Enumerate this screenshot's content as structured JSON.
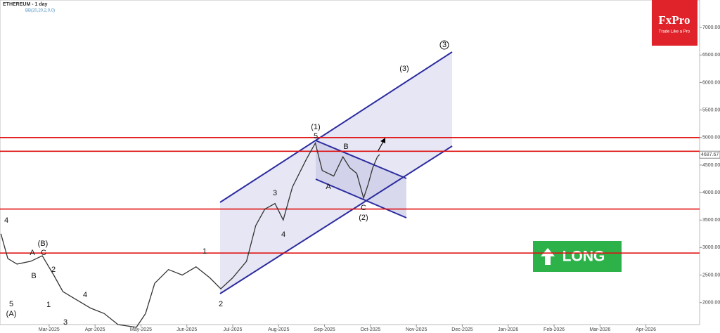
{
  "chart_data": {
    "type": "line",
    "title": "ETHEREUM - 1 day",
    "subtitle": "BB(20,20,2,0,0)",
    "logo": "FxPro",
    "logo_tagline": "Trade Like a Pro",
    "signal": "LONG",
    "last_price": {
      "value": 4687.67,
      "label": "4687.67"
    },
    "levels": [
      5000,
      4750,
      3700,
      2900
    ],
    "annotations": [
      "4",
      "(B)",
      "A",
      "C",
      "B",
      "2",
      "1",
      "5",
      "(A)",
      "4",
      "3",
      "1",
      "2",
      "3",
      "4",
      "(1)",
      "5",
      "B",
      "A",
      "C",
      "(2)",
      "(3)",
      "3"
    ],
    "x": [
      0.95,
      1.1,
      1.3,
      1.6,
      1.85,
      2.1,
      2.3,
      2.6,
      2.9,
      3.2,
      3.5,
      3.9,
      4.1,
      4.3,
      4.6,
      4.9,
      5.2,
      5.5,
      5.74,
      6.0,
      6.3,
      6.5,
      6.7,
      6.92,
      7.1,
      7.3,
      7.6,
      7.8,
      7.95,
      8.2,
      8.4,
      8.55,
      8.7,
      8.85,
      8.95,
      9.05,
      9.15,
      9.2
    ],
    "series": [
      {
        "name": "ETHEREUM",
        "color": "#333333",
        "values": [
          3250,
          2800,
          2700,
          2750,
          2850,
          2500,
          2200,
          2050,
          1900,
          1800,
          1600,
          1550,
          1800,
          2350,
          2600,
          2500,
          2650,
          2450,
          2250,
          2450,
          2750,
          3400,
          3700,
          3800,
          3500,
          4100,
          4600,
          4900,
          4400,
          4300,
          4650,
          4450,
          4350,
          3900,
          4150,
          4450,
          4650,
          4690
        ]
      }
    ],
    "xlim": [
      0.93,
      16.17
    ],
    "xticks": [
      {
        "value": 2,
        "label": "Mar-2025"
      },
      {
        "value": 3,
        "label": "Apr-2025"
      },
      {
        "value": 4,
        "label": "May-2025"
      },
      {
        "value": 5,
        "label": "Jun-2025"
      },
      {
        "value": 6,
        "label": "Jul-2025"
      },
      {
        "value": 7,
        "label": "Aug-2025"
      },
      {
        "value": 8,
        "label": "Sep-2025"
      },
      {
        "value": 9,
        "label": "Oct-2025"
      },
      {
        "value": 10,
        "label": "Nov-2025"
      },
      {
        "value": 11,
        "label": "Dec-2025"
      },
      {
        "value": 12,
        "label": "Jan-2026"
      },
      {
        "value": 13,
        "label": "Feb-2026"
      },
      {
        "value": 14,
        "label": "Mar-2026"
      },
      {
        "value": 15,
        "label": "Apr-2026"
      }
    ],
    "ylim": [
      1600,
      7500
    ],
    "yticks": [
      {
        "value": 2000,
        "label": "2000.00"
      },
      {
        "value": 2500,
        "label": "2500.00"
      },
      {
        "value": 3000,
        "label": "3000.00"
      },
      {
        "value": 3500,
        "label": "3500.00"
      },
      {
        "value": 4000,
        "label": "4000.00"
      },
      {
        "value": 4500,
        "label": "4500.00"
      },
      {
        "value": 5000,
        "label": "5000.00"
      },
      {
        "value": 5500,
        "label": "5500.00"
      },
      {
        "value": 6000,
        "label": "6000.00"
      },
      {
        "value": 6500,
        "label": "6500.00"
      },
      {
        "value": 7000,
        "label": "7000.00"
      }
    ]
  }
}
